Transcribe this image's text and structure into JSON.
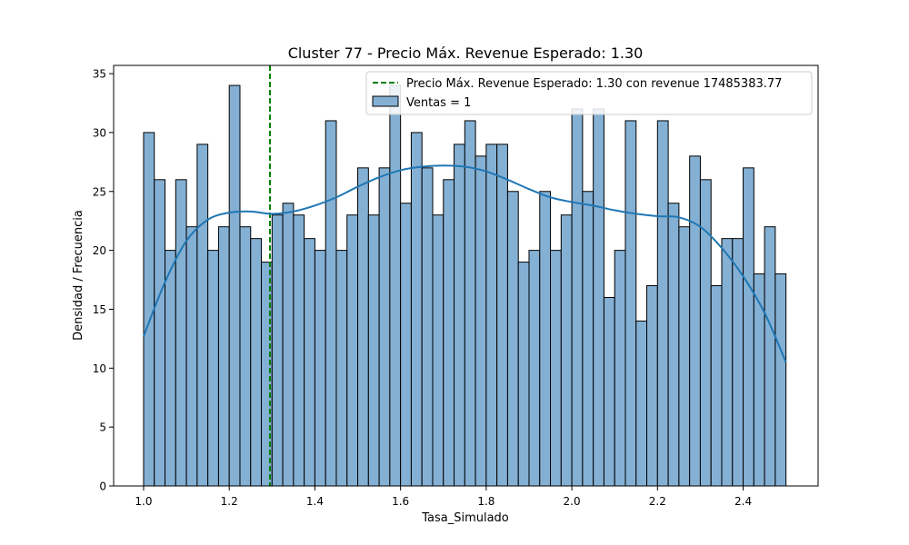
{
  "chart_data": {
    "type": "bar",
    "title": "Cluster 77 - Precio Máx. Revenue Esperado: 1.30",
    "xlabel": "Tasa_Simulado",
    "ylabel": "Densidad / Frecuencia",
    "xlim": [
      0.93,
      2.575
    ],
    "ylim": [
      0,
      35.7
    ],
    "xticks": [
      1.0,
      1.2,
      1.4,
      1.6,
      1.8,
      2.0,
      2.2,
      2.4
    ],
    "xtick_labels": [
      "1.0",
      "1.2",
      "1.4",
      "1.6",
      "1.8",
      "2.0",
      "2.2",
      "2.4"
    ],
    "yticks": [
      0,
      5,
      10,
      15,
      20,
      25,
      30,
      35
    ],
    "ytick_labels": [
      "0",
      "5",
      "10",
      "15",
      "20",
      "25",
      "30",
      "35"
    ],
    "bin_start": 1.0,
    "bin_width": 0.025,
    "counts": [
      30,
      26,
      20,
      26,
      22,
      29,
      20,
      22,
      34,
      22,
      21,
      19,
      23,
      24,
      23,
      21,
      20,
      31,
      20,
      23,
      27,
      23,
      27,
      34,
      24,
      30,
      27,
      23,
      26,
      29,
      31,
      28,
      29,
      29,
      25,
      19,
      20,
      25,
      20,
      23,
      32,
      25,
      32,
      16,
      20,
      31,
      14,
      17,
      31,
      24,
      22,
      28,
      26,
      17,
      21,
      21,
      27,
      18,
      22,
      18
    ],
    "bar_color": "#84b0d4",
    "kde": {
      "color": "#1f77b4",
      "x": [
        1.0,
        1.05,
        1.1,
        1.15,
        1.2,
        1.25,
        1.3,
        1.35,
        1.4,
        1.45,
        1.5,
        1.55,
        1.6,
        1.65,
        1.7,
        1.75,
        1.8,
        1.85,
        1.9,
        1.95,
        2.0,
        2.05,
        2.1,
        2.15,
        2.2,
        2.25,
        2.3,
        2.35,
        2.4,
        2.45,
        2.5
      ],
      "y": [
        12.7,
        17.3,
        20.8,
        22.6,
        23.2,
        23.3,
        23.1,
        23.3,
        23.8,
        24.5,
        25.4,
        26.2,
        26.8,
        27.1,
        27.2,
        27.1,
        26.7,
        26.0,
        25.2,
        24.5,
        24.1,
        23.8,
        23.4,
        23.1,
        22.9,
        22.8,
        22.0,
        20.2,
        17.8,
        14.7,
        10.5
      ]
    },
    "vline": {
      "x": 1.295,
      "color": "#008000",
      "label": "Precio Máx. Revenue Esperado: 1.30 con revenue 17485383.77"
    },
    "legend": {
      "placement": "top-right",
      "bar_label": "Ventas = 1"
    },
    "grid": false
  }
}
